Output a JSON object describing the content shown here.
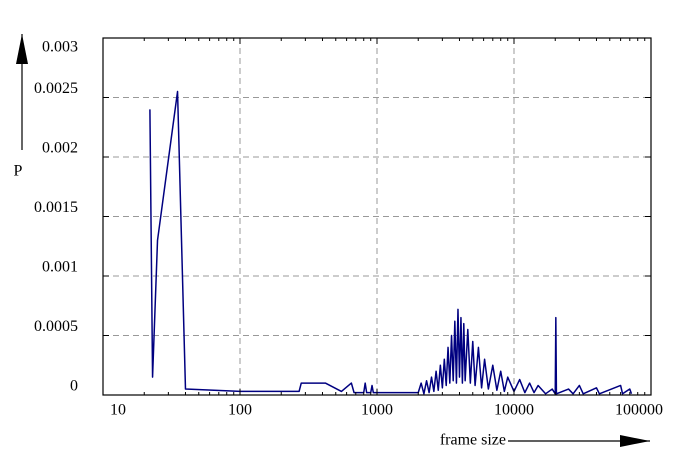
{
  "chart_data": {
    "type": "line",
    "y_label": "P",
    "x_label": "frame size",
    "x_log": true,
    "grid": true,
    "color": "#000080",
    "xlim": [
      10,
      100000
    ],
    "xticks": [
      10,
      100,
      1000,
      10000,
      100000
    ],
    "ylim": [
      0,
      0.003
    ],
    "yticks": [
      0,
      0.0005,
      0.001,
      0.0015,
      0.002,
      0.0025,
      0.003
    ],
    "x": [
      22,
      23,
      25,
      35,
      40,
      100,
      270,
      280,
      420,
      550,
      650,
      680,
      800,
      820,
      840,
      900,
      920,
      940,
      2000,
      2100,
      2200,
      2300,
      2400,
      2500,
      2600,
      2700,
      2800,
      2900,
      3000,
      3100,
      3200,
      3300,
      3400,
      3500,
      3600,
      3700,
      3800,
      3900,
      4000,
      4100,
      4200,
      4300,
      4400,
      4600,
      4800,
      5000,
      5200,
      5500,
      5800,
      6100,
      6500,
      7000,
      7500,
      8000,
      8500,
      9000,
      10000,
      11000,
      12000,
      13000,
      14000,
      15000,
      17000,
      19000,
      20000,
      20200,
      20400,
      25000,
      27000,
      30000,
      32000,
      40000,
      42000,
      60000,
      62000,
      70000,
      72000
    ],
    "values": [
      0.0024,
      0.00015,
      0.0013,
      0.00255,
      5e-05,
      3e-05,
      3e-05,
      0.0001,
      0.0001,
      3e-05,
      0.0001,
      2e-05,
      2e-05,
      0.0001,
      2e-05,
      2e-05,
      8e-05,
      2e-05,
      2e-05,
      0.0001,
      1e-05,
      0.00012,
      2e-05,
      0.00015,
      3e-05,
      0.0002,
      4e-05,
      0.00025,
      6e-05,
      0.0003,
      8e-05,
      0.0004,
      0.0001,
      0.0005,
      0.00012,
      0.00062,
      0.0001,
      0.00072,
      0.00015,
      0.00065,
      0.0001,
      0.0006,
      0.00012,
      0.00055,
      0.0001,
      0.00045,
      8e-05,
      0.0004,
      6e-05,
      0.0003,
      5e-05,
      0.00025,
      4e-05,
      0.0002,
      3e-05,
      0.00015,
      3e-05,
      0.00013,
      2e-05,
      0.0001,
      2e-05,
      8e-05,
      1e-05,
      5e-05,
      1e-05,
      0.00065,
      1e-05,
      5e-05,
      1e-05,
      8e-05,
      1e-05,
      6e-05,
      1e-05,
      8e-05,
      1e-05,
      5e-05,
      1e-05
    ]
  }
}
